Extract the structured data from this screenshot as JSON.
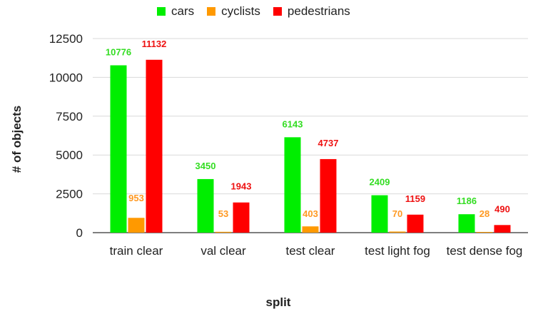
{
  "chart_data": {
    "type": "bar",
    "categories": [
      "train clear",
      "val clear",
      "test clear",
      "test light fog",
      "test dense fog"
    ],
    "series": [
      {
        "name": "cars",
        "color": "#00ee00",
        "values": [
          10776,
          3450,
          6143,
          2409,
          1186
        ]
      },
      {
        "name": "cyclists",
        "color": "#ff9900",
        "values": [
          953,
          53,
          403,
          70,
          28
        ]
      },
      {
        "name": "pedestrians",
        "color": "#ff0000",
        "values": [
          11132,
          1943,
          4737,
          1159,
          490
        ]
      }
    ],
    "label_colors": [
      "#33dd22",
      "#ff9922",
      "#ee1111"
    ],
    "xlabel": "split",
    "ylabel": "# of objects",
    "ylim": [
      0,
      12500
    ],
    "yticks": [
      0,
      2500,
      5000,
      7500,
      10000,
      12500
    ],
    "grid": true,
    "legend_position": "top"
  }
}
